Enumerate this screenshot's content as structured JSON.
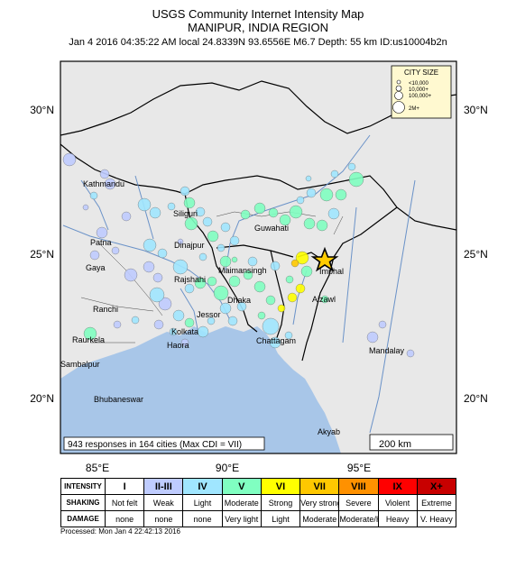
{
  "header": {
    "title": "USGS Community Internet Intensity Map",
    "region": "MANIPUR, INDIA REGION",
    "event_line": "Jan 4 2016 04:35:22 AM local 24.8339N 93.6556E M6.7 Depth: 55 km ID:us10004b2n"
  },
  "map": {
    "lat_labels": [
      "30°N",
      "25°N",
      "20°N"
    ],
    "lon_labels": [
      "85°E",
      "90°E",
      "95°E"
    ],
    "cities": [
      "Kathmandu",
      "Siliguri",
      "Guwahati",
      "Patna",
      "Gaya",
      "Dinajpur",
      "Maimansingh",
      "Rajshahi",
      "Dhaka",
      "Imphal",
      "Aizawl",
      "Ranchi",
      "Jessor",
      "Kolkata",
      "Haora",
      "Raurkela",
      "Chattagam",
      "Mandalay",
      "Sambalpur",
      "Bhubaneswar",
      "Akyab"
    ],
    "responses_note": "943 responses in 164 cities (Max CDI = VII)",
    "scale_label": "200 km",
    "city_size_legend": {
      "title": "CITY SIZE",
      "items": [
        "<10,000",
        "10,000+",
        "100,000+",
        "2M+"
      ]
    },
    "epicenter": "star-icon"
  },
  "legend": {
    "row_labels": [
      "INTENSITY",
      "SHAKING",
      "DAMAGE"
    ],
    "levels": [
      {
        "intensity": "I",
        "shaking": "Not felt",
        "damage": "none",
        "color": "#ffffff"
      },
      {
        "intensity": "II-III",
        "shaking": "Weak",
        "damage": "none",
        "color": "#bfccff"
      },
      {
        "intensity": "IV",
        "shaking": "Light",
        "damage": "none",
        "color": "#a0e6ff"
      },
      {
        "intensity": "V",
        "shaking": "Moderate",
        "damage": "Very light",
        "color": "#80ffc1"
      },
      {
        "intensity": "VI",
        "shaking": "Strong",
        "damage": "Light",
        "color": "#ffff00"
      },
      {
        "intensity": "VII",
        "shaking": "Very strong",
        "damage": "Moderate",
        "color": "#ffc800"
      },
      {
        "intensity": "VIII",
        "shaking": "Severe",
        "damage": "Moderate/Heavy",
        "color": "#ff9100"
      },
      {
        "intensity": "IX",
        "shaking": "Violent",
        "damage": "Heavy",
        "color": "#ff0000"
      },
      {
        "intensity": "X+",
        "shaking": "Extreme",
        "damage": "V. Heavy",
        "color": "#c80000"
      }
    ]
  },
  "footer": {
    "processed": "Processed: Mon Jan  4 22:42:13 2016"
  }
}
